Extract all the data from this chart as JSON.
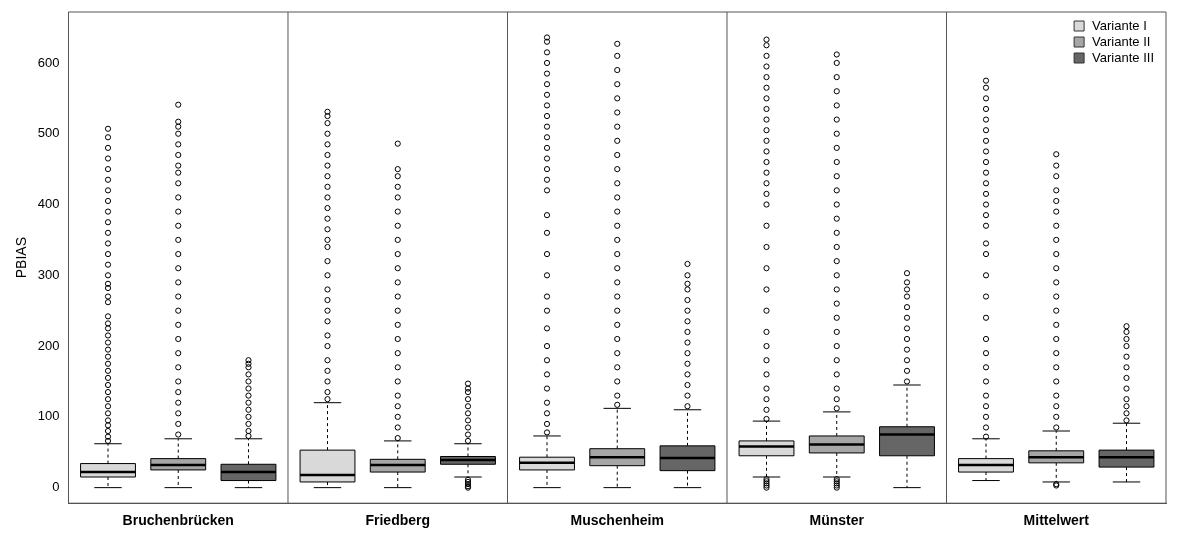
{
  "chart_data": {
    "type": "box",
    "ylabel": "PBIAS",
    "categories": [
      "Bruchenbrücken",
      "Friedberg",
      "Muschenheim",
      "Münster",
      "Mittelwert"
    ],
    "ylim": [
      -22,
      672
    ],
    "yticks": [
      0,
      100,
      200,
      300,
      400,
      500,
      600
    ],
    "grid": false,
    "legend": "top right",
    "series": [
      {
        "name": "Variante I",
        "color": "#d9d9d9",
        "boxes": [
          {
            "low": 0,
            "q1": 15,
            "median": 22,
            "q3": 34,
            "high": 62,
            "outliers": [
              66,
              72,
              80,
              88,
              95,
              105,
              115,
              125,
              135,
              145,
              155,
              165,
              175,
              185,
              195,
              205,
              215,
              225,
              232,
              242,
              262,
              270,
              282,
              288,
              300,
              315,
              330,
              345,
              360,
              375,
              390,
              405,
              420,
              435,
              450,
              465,
              480,
              495,
              507
            ]
          },
          {
            "low": 0,
            "q1": 8,
            "median": 18,
            "q3": 53,
            "high": 120,
            "outliers": [
              125,
              135,
              150,
              165,
              180,
              200,
              215,
              235,
              250,
              265,
              280,
              300,
              320,
              340,
              350,
              365,
              380,
              395,
              410,
              425,
              440,
              455,
              470,
              485,
              500,
              515,
              525,
              531
            ]
          },
          {
            "low": 0,
            "q1": 25,
            "median": 35,
            "q3": 43,
            "high": 73,
            "outliers": [
              78,
              90,
              105,
              120,
              140,
              160,
              180,
              200,
              225,
              250,
              270,
              300,
              330,
              360,
              385,
              420,
              435,
              450,
              465,
              480,
              495,
              510,
              525,
              540,
              555,
              570,
              585,
              600,
              615,
              630,
              636
            ]
          },
          {
            "low": 15,
            "q1": 45,
            "median": 58,
            "q3": 66,
            "high": 94,
            "outliers": [
              0,
              3,
              6,
              9,
              12,
              97,
              110,
              125,
              140,
              160,
              180,
              200,
              220,
              250,
              280,
              310,
              340,
              370,
              400,
              415,
              430,
              445,
              460,
              475,
              490,
              505,
              520,
              535,
              550,
              565,
              580,
              595,
              610,
              625,
              633
            ]
          },
          {
            "low": 10,
            "q1": 22,
            "median": 32,
            "q3": 41,
            "high": 69,
            "outliers": [
              72,
              85,
              100,
              115,
              130,
              150,
              170,
              190,
              210,
              240,
              270,
              300,
              330,
              345,
              370,
              385,
              400,
              415,
              430,
              445,
              460,
              475,
              490,
              505,
              520,
              535,
              550,
              565,
              575
            ]
          }
        ]
      },
      {
        "name": "Variante II",
        "color": "#a6a6a6",
        "boxes": [
          {
            "low": 0,
            "q1": 25,
            "median": 32,
            "q3": 41,
            "high": 69,
            "outliers": [
              75,
              90,
              105,
              120,
              135,
              150,
              170,
              190,
              210,
              230,
              250,
              270,
              290,
              310,
              330,
              350,
              370,
              390,
              410,
              430,
              445,
              455,
              470,
              485,
              500,
              510,
              517,
              541
            ]
          },
          {
            "low": 0,
            "q1": 22,
            "median": 32,
            "q3": 40,
            "high": 66,
            "outliers": [
              70,
              85,
              100,
              115,
              130,
              150,
              170,
              190,
              210,
              230,
              250,
              270,
              290,
              310,
              330,
              350,
              370,
              390,
              410,
              425,
              440,
              450,
              486
            ]
          },
          {
            "low": 0,
            "q1": 31,
            "median": 43,
            "q3": 55,
            "high": 112,
            "outliers": [
              117,
              130,
              150,
              170,
              190,
              210,
              230,
              250,
              270,
              290,
              310,
              330,
              350,
              370,
              390,
              410,
              430,
              450,
              470,
              490,
              510,
              530,
              550,
              570,
              590,
              610,
              627
            ]
          },
          {
            "low": 15,
            "q1": 49,
            "median": 61,
            "q3": 73,
            "high": 107,
            "outliers": [
              0,
              3,
              6,
              9,
              12,
              112,
              125,
              140,
              160,
              180,
              200,
              220,
              240,
              260,
              280,
              300,
              320,
              340,
              360,
              380,
              400,
              420,
              440,
              460,
              480,
              500,
              520,
              540,
              560,
              580,
              600,
              612
            ]
          },
          {
            "low": 8,
            "q1": 35,
            "median": 43,
            "q3": 52,
            "high": 80,
            "outliers": [
              3,
              5,
              85,
              100,
              115,
              130,
              150,
              170,
              190,
              210,
              230,
              250,
              270,
              290,
              310,
              330,
              350,
              370,
              390,
              405,
              420,
              440,
              455,
              471
            ]
          }
        ]
      },
      {
        "name": "Variante III",
        "color": "#666666",
        "boxes": [
          {
            "low": 0,
            "q1": 10,
            "median": 22,
            "q3": 33,
            "high": 69,
            "outliers": [
              73,
              80,
              90,
              100,
              110,
              120,
              130,
              140,
              150,
              160,
              170,
              175,
              180
            ]
          },
          {
            "low": 15,
            "q1": 33,
            "median": 39,
            "q3": 44,
            "high": 62,
            "outliers": [
              0,
              2,
              5,
              8,
              11,
              66,
              75,
              85,
              95,
              105,
              115,
              125,
              135,
              140,
              147
            ]
          },
          {
            "low": 0,
            "q1": 24,
            "median": 42,
            "q3": 59,
            "high": 110,
            "outliers": [
              115,
              130,
              145,
              160,
              175,
              190,
              205,
              220,
              235,
              250,
              265,
              280,
              288,
              300,
              316
            ]
          },
          {
            "low": 0,
            "q1": 45,
            "median": 75,
            "q3": 86,
            "high": 145,
            "outliers": [
              150,
              165,
              180,
              195,
              210,
              225,
              240,
              255,
              270,
              280,
              290,
              303
            ]
          },
          {
            "low": 8,
            "q1": 29,
            "median": 43,
            "q3": 53,
            "high": 91,
            "outliers": [
              95,
              105,
              115,
              125,
              140,
              155,
              170,
              185,
              200,
              210,
              220,
              228
            ]
          }
        ]
      }
    ]
  }
}
